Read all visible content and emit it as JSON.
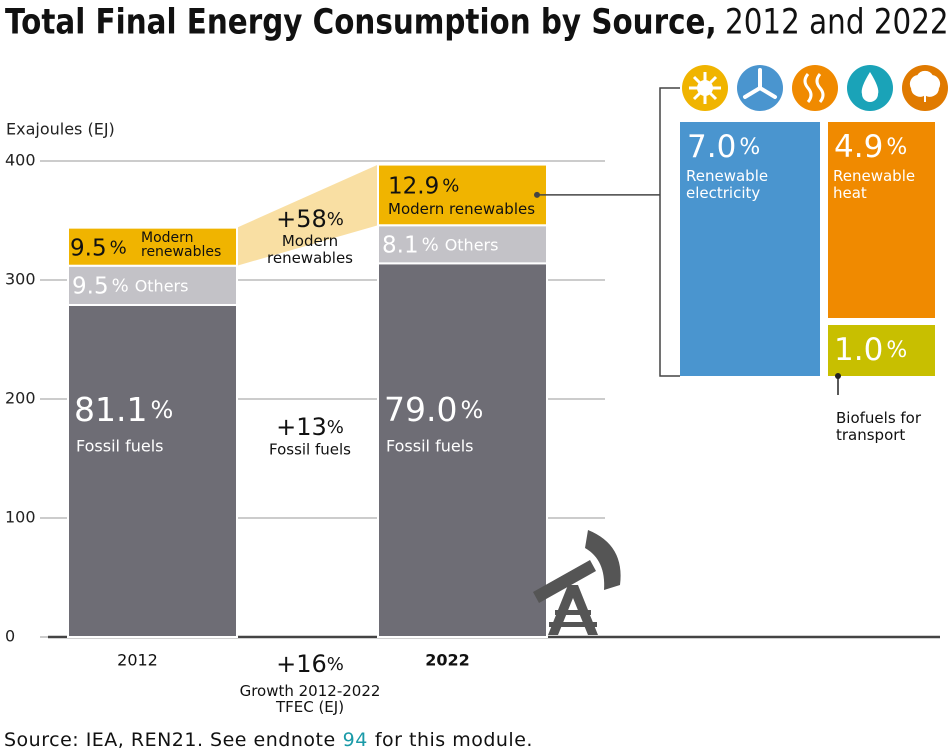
{
  "chart_data": {
    "type": "bar",
    "stacked": true,
    "title": "Total Final Energy Consumption by Source,",
    "title_years": "2012 and 2022",
    "y_label": "Exajoules (EJ)",
    "categories": [
      "2012",
      "2022"
    ],
    "series": [
      {
        "name": "Fossil fuels",
        "color": "#6e6d75",
        "values": [
          279,
          314
        ],
        "share_labels": [
          "81.1",
          "79.0"
        ]
      },
      {
        "name": "Others",
        "color": "#c3c2c7",
        "values": [
          33,
          32
        ],
        "share_labels": [
          "9.5",
          "8.1"
        ]
      },
      {
        "name": "Modern renewables",
        "color": "#f0b400",
        "values": [
          32,
          51
        ],
        "share_labels": [
          "9.5",
          "12.9"
        ]
      }
    ],
    "unit": "%",
    "ylim": [
      0,
      400
    ],
    "yticks": [
      0,
      100,
      200,
      300,
      400
    ],
    "grid": true,
    "growth": [
      {
        "value": "+58",
        "label": "Modern renewables"
      },
      {
        "value": "+13",
        "label": "Fossil fuels"
      },
      {
        "value": "+16",
        "label": "Growth 2012-2022 TFEC (EJ)"
      }
    ],
    "breakdown": {
      "names": [
        "Renewable electricity",
        "Renewable heat",
        "Biofuels for transport"
      ],
      "values": [
        7.0,
        4.9,
        1.0
      ],
      "value_labels": [
        "7.0",
        "4.9",
        "1.0"
      ],
      "colors": [
        "#4a95cf",
        "#f08a00",
        "#c8bf00"
      ]
    }
  },
  "source": {
    "text": "Source: IEA, REN21. See endnote",
    "endnote": "94",
    "suffix": "for this module."
  }
}
